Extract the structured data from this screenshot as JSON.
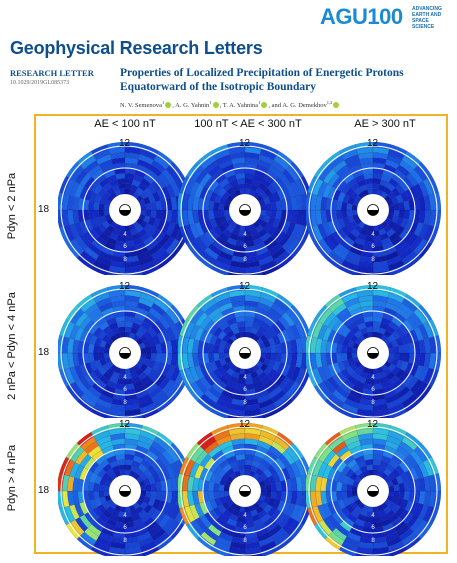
{
  "header": {
    "logo_text": "AGU100",
    "logo_tagline": "ADVANCING EARTH AND SPACE SCIENCE",
    "journal": "Geophysical Research Letters",
    "article_type": "RESEARCH LETTER",
    "doi": "10.1029/2019GL085373",
    "title": "Properties of Localized Precipitation of Energetic Protons Equatorward of the Isotropic Boundary",
    "authors": [
      {
        "name": "N. V. Semenova",
        "sup": "1",
        "sep": ", "
      },
      {
        "name": "A. G. Yahnin",
        "sup": "1",
        "sep": ", "
      },
      {
        "name": "T. A. Yahnina",
        "sup": "1",
        "sep": ", and "
      },
      {
        "name": "A. G. Demekhov",
        "sup": "1,2",
        "sep": ""
      }
    ],
    "colors": {
      "brand": "#1b8ad3",
      "title": "#0f4e8c",
      "frame": "#f0b323",
      "orcid": "#a6ce39"
    }
  },
  "figure": {
    "columns": [
      "AE < 100 nT",
      "100 nT < AE < 300 nT",
      "AE > 300 nT"
    ],
    "rows": [
      "Pdyn < 2 nPa",
      "2 nPa < Pdyn < 4 nPa",
      "Pdyn > 4 nPa"
    ],
    "noon_label": "12",
    "dusk_label": "18",
    "radial_labels": [
      "4",
      "6",
      "8"
    ],
    "grid_meaning": "MLT-L shell polar map of localized proton precipitation occurrence"
  }
}
